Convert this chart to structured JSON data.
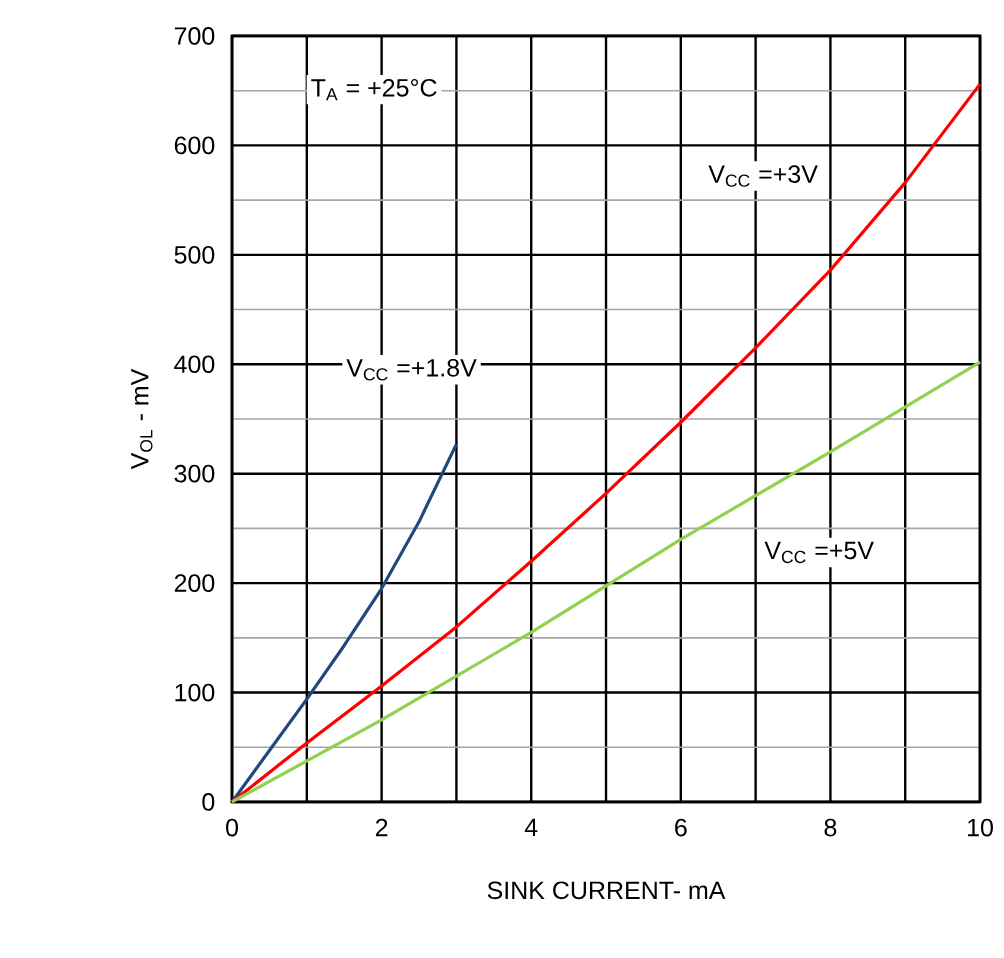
{
  "chart_data": {
    "type": "line",
    "xlabel": "SINK CURRENT- mA",
    "ylabel": "V$_{OL}$ - mV",
    "annotations": [
      "T$_{A}$ = +25°C"
    ],
    "xlim": [
      0,
      10
    ],
    "ylim": [
      0,
      700
    ],
    "xticks": [
      0,
      {
        "value": 1,
        "label": null
      },
      2,
      {
        "value": 3,
        "label": null
      },
      4,
      {
        "value": 5,
        "label": null
      },
      6,
      {
        "value": 7,
        "label": null
      },
      8,
      {
        "value": 9,
        "label": null
      },
      10
    ],
    "yticks": [
      0,
      100,
      200,
      300,
      400,
      500,
      600,
      700
    ],
    "grid": true,
    "legend": false,
    "series": [
      {
        "name": "V$_{CC}$ =+1.8V",
        "color": "#1f497d",
        "x": [
          0,
          0.5,
          1,
          1.5,
          2,
          2.5,
          3
        ],
        "values": [
          0,
          47,
          94,
          143,
          195,
          256,
          327
        ]
      },
      {
        "name": "V$_{CC}$ =+3V",
        "color": "#ff0000",
        "x": [
          0,
          1,
          2,
          3,
          4,
          5,
          6,
          7,
          8,
          9,
          10
        ],
        "values": [
          0,
          54,
          106,
          160,
          220,
          282,
          347,
          415,
          486,
          566,
          656
        ]
      },
      {
        "name": "V$_{CC}$ =+5V",
        "color": "#92d050",
        "x": [
          0,
          2,
          4,
          6,
          8,
          10
        ],
        "values": [
          0,
          75,
          155,
          240,
          320,
          402
        ]
      }
    ]
  }
}
